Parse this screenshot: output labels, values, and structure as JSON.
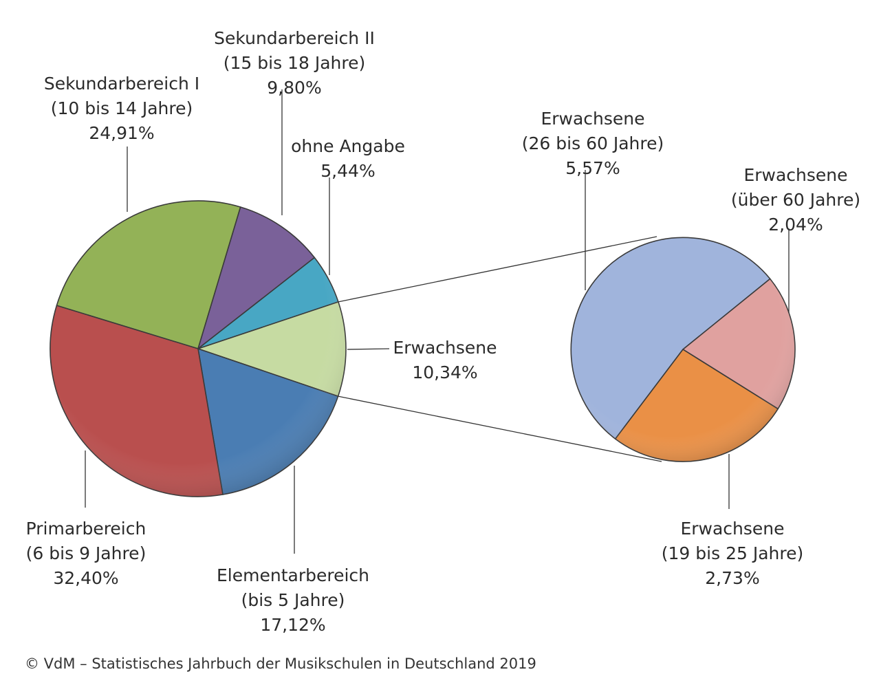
{
  "chart_data": {
    "type": "pie",
    "main": {
      "slices": [
        {
          "label": [
            "Sekundarbereich I",
            "(10 bis 14 Jahre)"
          ],
          "value_label": "24,91%",
          "value": 24.91,
          "color": "#93b257"
        },
        {
          "label": [
            "Sekundarbereich II",
            "(15 bis 18 Jahre)"
          ],
          "value_label": "9,80%",
          "value": 9.8,
          "color": "#7a6199"
        },
        {
          "label": [
            "ohne Angabe"
          ],
          "value_label": "5,44%",
          "value": 5.44,
          "color": "#48a7c4"
        },
        {
          "label": [
            "Erwachsene"
          ],
          "value_label": "10,34%",
          "value": 10.34,
          "color": "#c6dba2"
        },
        {
          "label": [
            "Elementarbereich",
            "(bis 5 Jahre)"
          ],
          "value_label": "17,12%",
          "value": 17.12,
          "color": "#4a7db3"
        },
        {
          "label": [
            "Primarbereich",
            "(6 bis 9 Jahre)"
          ],
          "value_label": "32,40%",
          "value": 32.4,
          "color": "#b94f4e"
        }
      ]
    },
    "detail": {
      "slices": [
        {
          "label": [
            "Erwachsene",
            "(26 bis 60 Jahre)"
          ],
          "value_label": "5,57%",
          "value": 5.57,
          "color": "#a0b4dc"
        },
        {
          "label": [
            "Erwachsene",
            "(über 60 Jahre)"
          ],
          "value_label": "2,04%",
          "value": 2.04,
          "color": "#e0a19f"
        },
        {
          "label": [
            "Erwachsene",
            "(19 bis 25 Jahre)"
          ],
          "value_label": "2,73%",
          "value": 2.73,
          "color": "#ea9046"
        }
      ]
    }
  },
  "source": "© VdM – Statistisches Jahrbuch der Musikschulen in Deutschland 2019"
}
